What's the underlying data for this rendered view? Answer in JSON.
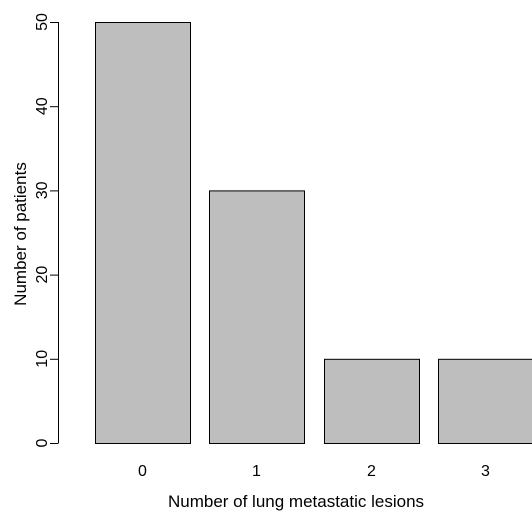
{
  "chart_data": {
    "type": "bar",
    "categories": [
      "0",
      "1",
      "2",
      "3"
    ],
    "values": [
      50,
      30,
      10,
      10
    ],
    "title": "",
    "xlabel": "Number of lung metastatic lesions",
    "ylabel": "Number of patients",
    "ylim": [
      0,
      50
    ],
    "yticks": [
      "0",
      "10",
      "20",
      "30",
      "40",
      "50"
    ],
    "grid": false,
    "bar_color": "#bebebe",
    "bar_edge_color": "#000000"
  }
}
